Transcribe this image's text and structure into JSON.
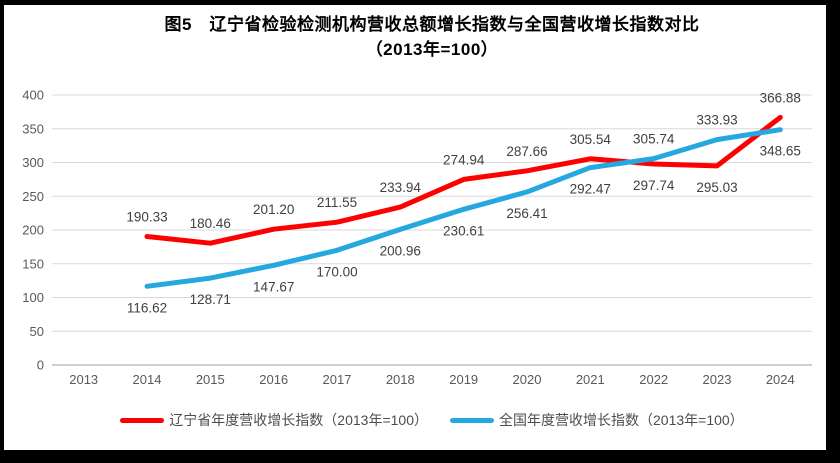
{
  "title": {
    "line1": "图5　辽宁省检验检测机构营收总额增长指数与全国营收增长指数对比",
    "line2": "（2013年=100）"
  },
  "chart_data": {
    "type": "line",
    "title": "图5 辽宁省检验检测机构营收总额增长指数与全国营收增长指数对比（2013年=100）",
    "categories": [
      "2013",
      "2014",
      "2015",
      "2016",
      "2017",
      "2018",
      "2019",
      "2020",
      "2021",
      "2022",
      "2023",
      "2024"
    ],
    "series": [
      {
        "name": "辽宁省年度营收增长指数（2013年=100）",
        "color": "#FF0000",
        "values": [
          null,
          190.33,
          180.46,
          201.2,
          211.55,
          233.94,
          274.94,
          287.66,
          305.54,
          297.74,
          295.03,
          366.88
        ]
      },
      {
        "name": "全国年度营收增长指数（2013年=100）",
        "color": "#25A8E0",
        "values": [
          null,
          116.62,
          128.71,
          147.67,
          170.0,
          200.96,
          230.61,
          256.41,
          292.47,
          305.74,
          333.93,
          348.65
        ]
      }
    ],
    "ylim": [
      0,
      400
    ],
    "ytick_step": 50,
    "yticks": [
      "0",
      "50",
      "100",
      "150",
      "200",
      "250",
      "300",
      "350",
      "400"
    ],
    "grid": true,
    "data_labels": true,
    "legend_position": "bottom"
  },
  "colors": {
    "gridline": "#D9D9D9",
    "axis_line": "#BFBFBF",
    "tick_label": "#595959",
    "data_label": "#404040",
    "frame_border": "#000000",
    "background": "#FFFFFF"
  }
}
